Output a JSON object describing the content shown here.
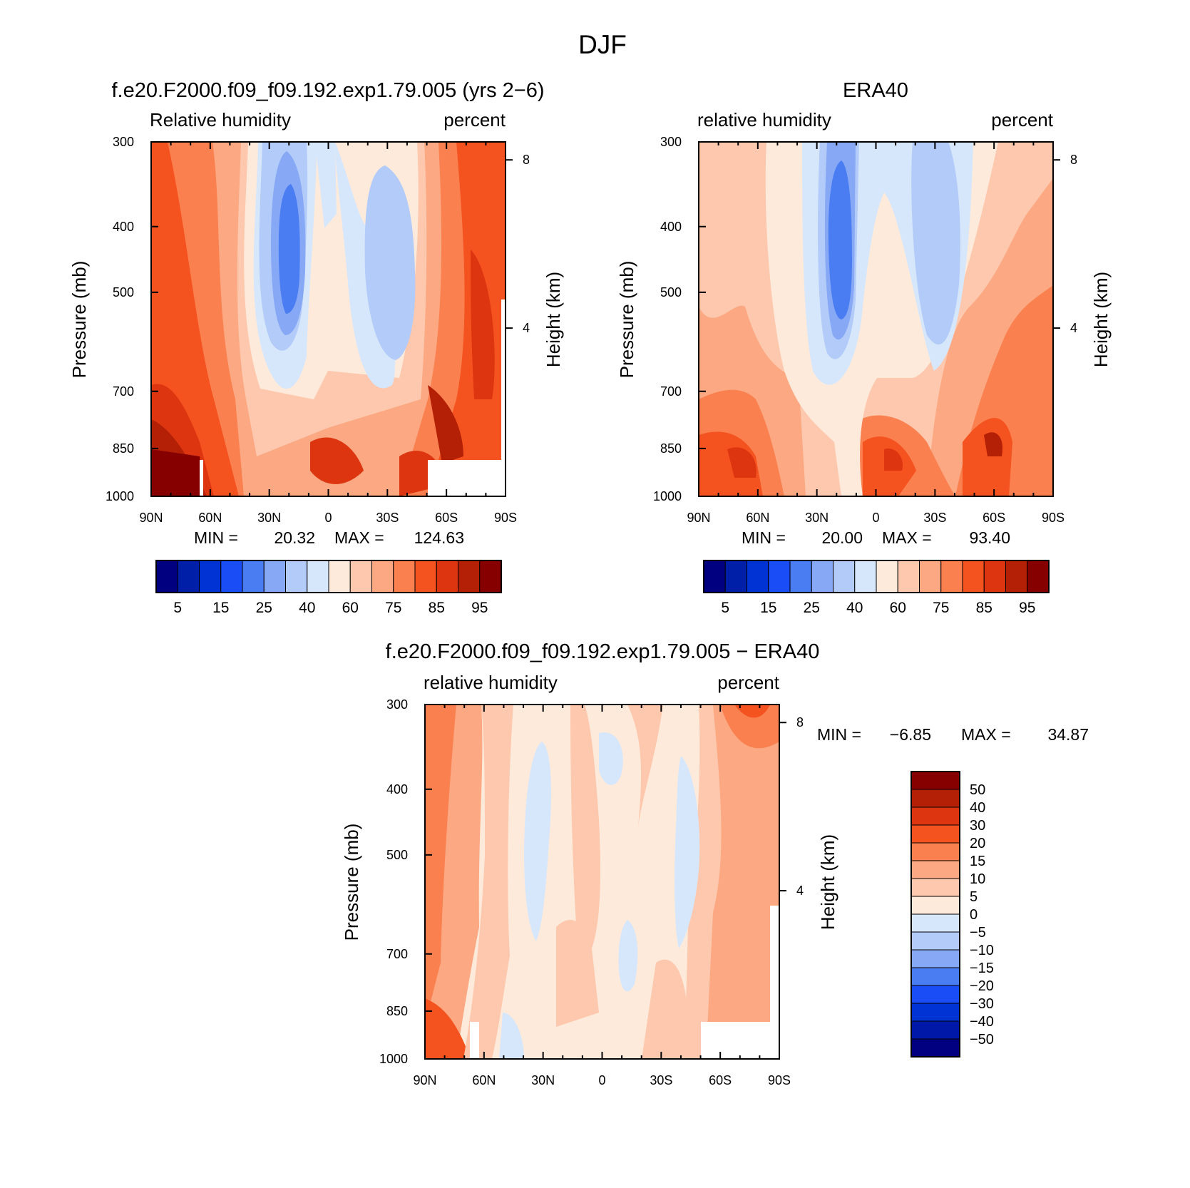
{
  "main_title": "DJF",
  "colors": {
    "abs": [
      "#000080",
      "#001fa8",
      "#0032d4",
      "#1a4df5",
      "#4a7df2",
      "#87a8f5",
      "#b3cbf8",
      "#d6e7fb",
      "#feeadb",
      "#fdc8ad",
      "#fca882",
      "#fa8050",
      "#f45320",
      "#dd3510",
      "#b42006",
      "#870000"
    ],
    "diff": [
      "#000080",
      "#0018a8",
      "#0032d4",
      "#1a4df5",
      "#4a7df2",
      "#87a8f5",
      "#b3cbf8",
      "#d6e7fb",
      "#feeadb",
      "#fdc8ad",
      "#fca882",
      "#fa8050",
      "#f45320",
      "#dd3510",
      "#b42006",
      "#870000"
    ]
  },
  "chart_data": [
    {
      "id": "model",
      "type": "contour",
      "title": "f.e20.F2000.f09_f09.192.exp1.79.005 (yrs 2−6)",
      "variable": "Relative humidity",
      "units": "percent",
      "xlabel": "",
      "ylabel": "Pressure (mb)",
      "y2label": "Height (km)",
      "x_ticks": [
        "90N",
        "60N",
        "30N",
        "0",
        "30S",
        "60S",
        "90S"
      ],
      "y_ticks": [
        "300",
        "400",
        "500",
        "700",
        "850",
        "1000"
      ],
      "y2_ticks": [
        "8",
        "4"
      ],
      "stats": {
        "min_label": "MIN =",
        "min": "20.32",
        "max_label": "MAX =",
        "max": "124.63"
      },
      "colorbar_labels": [
        "5",
        "15",
        "25",
        "40",
        "60",
        "75",
        "85",
        "95"
      ],
      "levels": [
        5,
        10,
        15,
        20,
        25,
        30,
        40,
        50,
        60,
        70,
        75,
        80,
        85,
        90,
        95
      ]
    },
    {
      "id": "obs",
      "type": "contour",
      "title": "ERA40",
      "variable": "relative humidity",
      "units": "percent",
      "xlabel": "",
      "ylabel": "Pressure (mb)",
      "y2label": "Height (km)",
      "x_ticks": [
        "90N",
        "60N",
        "30N",
        "0",
        "30S",
        "60S",
        "90S"
      ],
      "y_ticks": [
        "300",
        "400",
        "500",
        "700",
        "850",
        "1000"
      ],
      "y2_ticks": [
        "8",
        "4"
      ],
      "stats": {
        "min_label": "MIN =",
        "min": "20.00",
        "max_label": "MAX =",
        "max": "93.40"
      },
      "colorbar_labels": [
        "5",
        "15",
        "25",
        "40",
        "60",
        "75",
        "85",
        "95"
      ],
      "levels": [
        5,
        10,
        15,
        20,
        25,
        30,
        40,
        50,
        60,
        70,
        75,
        80,
        85,
        90,
        95
      ]
    },
    {
      "id": "diff",
      "type": "contour",
      "title": "f.e20.F2000.f09_f09.192.exp1.79.005 − ERA40",
      "variable": "relative humidity",
      "units": "percent",
      "xlabel": "",
      "ylabel": "Pressure (mb)",
      "y2label": "Height (km)",
      "x_ticks": [
        "90N",
        "60N",
        "30N",
        "0",
        "30S",
        "60S",
        "90S"
      ],
      "y_ticks": [
        "300",
        "400",
        "500",
        "700",
        "850",
        "1000"
      ],
      "y2_ticks": [
        "8",
        "4"
      ],
      "stats": {
        "min_label": "MIN =",
        "min": "−6.85",
        "max_label": "MAX =",
        "max": "34.87"
      },
      "colorbar_labels": [
        "50",
        "40",
        "30",
        "20",
        "15",
        "10",
        "5",
        "0",
        "−5",
        "−10",
        "−15",
        "−20",
        "−30",
        "−40",
        "−50"
      ],
      "levels": [
        -50,
        -40,
        -30,
        -20,
        -15,
        -10,
        -5,
        0,
        5,
        10,
        15,
        20,
        30,
        40,
        50
      ]
    }
  ]
}
